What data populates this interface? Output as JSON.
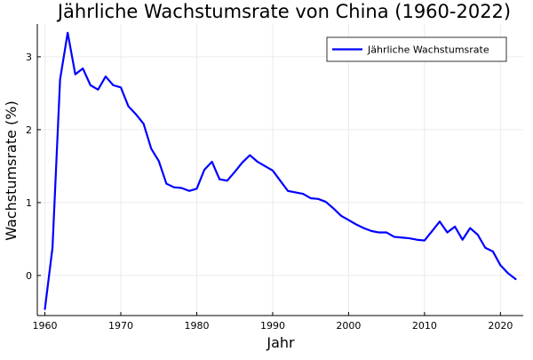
{
  "chart_data": {
    "type": "line",
    "title": "Jährliche Wachstumsrate von China (1960-2022)",
    "xlabel": "Jahr",
    "ylabel": "Wachstumsrate (%)",
    "xlim": [
      1959.0,
      2023.0
    ],
    "ylim": [
      -0.55,
      3.45
    ],
    "xticks": [
      1960,
      1970,
      1980,
      1990,
      2000,
      2010,
      2020
    ],
    "yticks": [
      0,
      1,
      2,
      3
    ],
    "grid": true,
    "legend_position": "top-right",
    "series": [
      {
        "name": "Jährliche Wachstumsrate",
        "color": "#0000ff",
        "x": [
          1960,
          1961,
          1962,
          1963,
          1964,
          1965,
          1966,
          1967,
          1968,
          1969,
          1970,
          1971,
          1972,
          1973,
          1974,
          1975,
          1976,
          1977,
          1978,
          1979,
          1980,
          1981,
          1982,
          1983,
          1984,
          1985,
          1986,
          1987,
          1988,
          1989,
          1990,
          1991,
          1992,
          1993,
          1994,
          1995,
          1996,
          1997,
          1998,
          1999,
          2000,
          2001,
          2002,
          2003,
          2004,
          2005,
          2006,
          2007,
          2008,
          2009,
          2010,
          2011,
          2012,
          2013,
          2014,
          2015,
          2016,
          2017,
          2018,
          2019,
          2020,
          2021,
          2022
        ],
        "y": [
          -0.46,
          0.38,
          2.69,
          3.33,
          2.76,
          2.84,
          2.61,
          2.55,
          2.73,
          2.61,
          2.58,
          2.32,
          2.21,
          2.08,
          1.74,
          1.57,
          1.26,
          1.21,
          1.2,
          1.16,
          1.19,
          1.45,
          1.56,
          1.32,
          1.3,
          1.42,
          1.55,
          1.65,
          1.56,
          1.5,
          1.44,
          1.3,
          1.16,
          1.14,
          1.12,
          1.06,
          1.05,
          1.01,
          0.92,
          0.82,
          0.76,
          0.7,
          0.65,
          0.61,
          0.59,
          0.59,
          0.53,
          0.52,
          0.51,
          0.49,
          0.48,
          0.61,
          0.74,
          0.59,
          0.67,
          0.49,
          0.65,
          0.56,
          0.38,
          0.33,
          0.14,
          0.03,
          -0.05
        ]
      }
    ]
  }
}
